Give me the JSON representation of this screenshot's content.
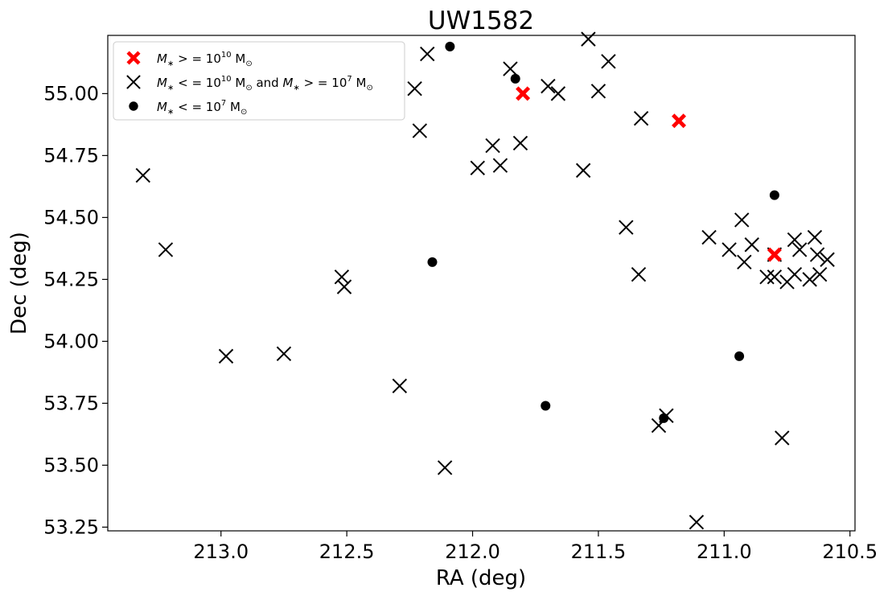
{
  "chart_data": {
    "type": "scatter",
    "title": "UW1582",
    "xlabel": "RA (deg)",
    "ylabel": "Dec (deg)",
    "xlim": [
      213.45,
      210.48
    ],
    "ylim": [
      53.235,
      55.235
    ],
    "x_inverted": true,
    "xticks": [
      "213.0",
      "212.5",
      "212.0",
      "211.5",
      "211.0",
      "210.5"
    ],
    "yticks": [
      "53.25",
      "53.50",
      "53.75",
      "54.00",
      "54.25",
      "54.50",
      "54.75",
      "55.00"
    ],
    "grid": false,
    "legend_position": "top-left",
    "series": [
      {
        "name_parts": [
          "M",
          "∗",
          " > = 10",
          "10",
          " M",
          "⊙"
        ],
        "marker": "X-filled",
        "color": "#ff0000",
        "points": [
          [
            211.8,
            55.0
          ],
          [
            211.18,
            54.89
          ],
          [
            210.8,
            54.35
          ]
        ]
      },
      {
        "name_parts": [
          "M",
          "∗",
          " < = 10",
          "10",
          " M",
          "⊙",
          " and ",
          "M",
          "∗",
          " > = 10",
          "7",
          " M",
          "⊙"
        ],
        "marker": "x",
        "color": "#000000",
        "points": [
          [
            211.54,
            55.22
          ],
          [
            212.18,
            55.16
          ],
          [
            211.46,
            55.13
          ],
          [
            212.23,
            55.02
          ],
          [
            211.85,
            55.1
          ],
          [
            211.7,
            55.03
          ],
          [
            211.66,
            55.0
          ],
          [
            211.5,
            55.01
          ],
          [
            211.33,
            54.9
          ],
          [
            212.21,
            54.85
          ],
          [
            211.92,
            54.79
          ],
          [
            211.81,
            54.8
          ],
          [
            211.98,
            54.7
          ],
          [
            211.89,
            54.71
          ],
          [
            211.56,
            54.69
          ],
          [
            213.31,
            54.67
          ],
          [
            213.22,
            54.37
          ],
          [
            211.39,
            54.46
          ],
          [
            211.34,
            54.27
          ],
          [
            212.52,
            54.26
          ],
          [
            212.51,
            54.22
          ],
          [
            211.06,
            54.42
          ],
          [
            210.93,
            54.49
          ],
          [
            210.98,
            54.37
          ],
          [
            210.92,
            54.32
          ],
          [
            210.89,
            54.39
          ],
          [
            210.8,
            54.35
          ],
          [
            210.83,
            54.26
          ],
          [
            210.8,
            54.26
          ],
          [
            210.75,
            54.24
          ],
          [
            210.72,
            54.27
          ],
          [
            210.72,
            54.41
          ],
          [
            210.7,
            54.37
          ],
          [
            210.66,
            54.25
          ],
          [
            210.64,
            54.42
          ],
          [
            210.63,
            54.35
          ],
          [
            210.62,
            54.27
          ],
          [
            210.59,
            54.33
          ],
          [
            212.98,
            53.94
          ],
          [
            212.75,
            53.95
          ],
          [
            212.29,
            53.82
          ],
          [
            211.26,
            53.66
          ],
          [
            211.23,
            53.7
          ],
          [
            212.11,
            53.49
          ],
          [
            210.77,
            53.61
          ],
          [
            211.11,
            53.27
          ]
        ]
      },
      {
        "name_parts": [
          "M",
          "∗",
          " < = 10",
          "7",
          " M",
          "⊙"
        ],
        "marker": "circle",
        "color": "#000000",
        "points": [
          [
            212.09,
            55.19
          ],
          [
            211.83,
            55.06
          ],
          [
            210.8,
            54.59
          ],
          [
            212.16,
            54.32
          ],
          [
            210.94,
            53.94
          ],
          [
            211.71,
            53.74
          ],
          [
            211.24,
            53.69
          ]
        ]
      }
    ]
  }
}
